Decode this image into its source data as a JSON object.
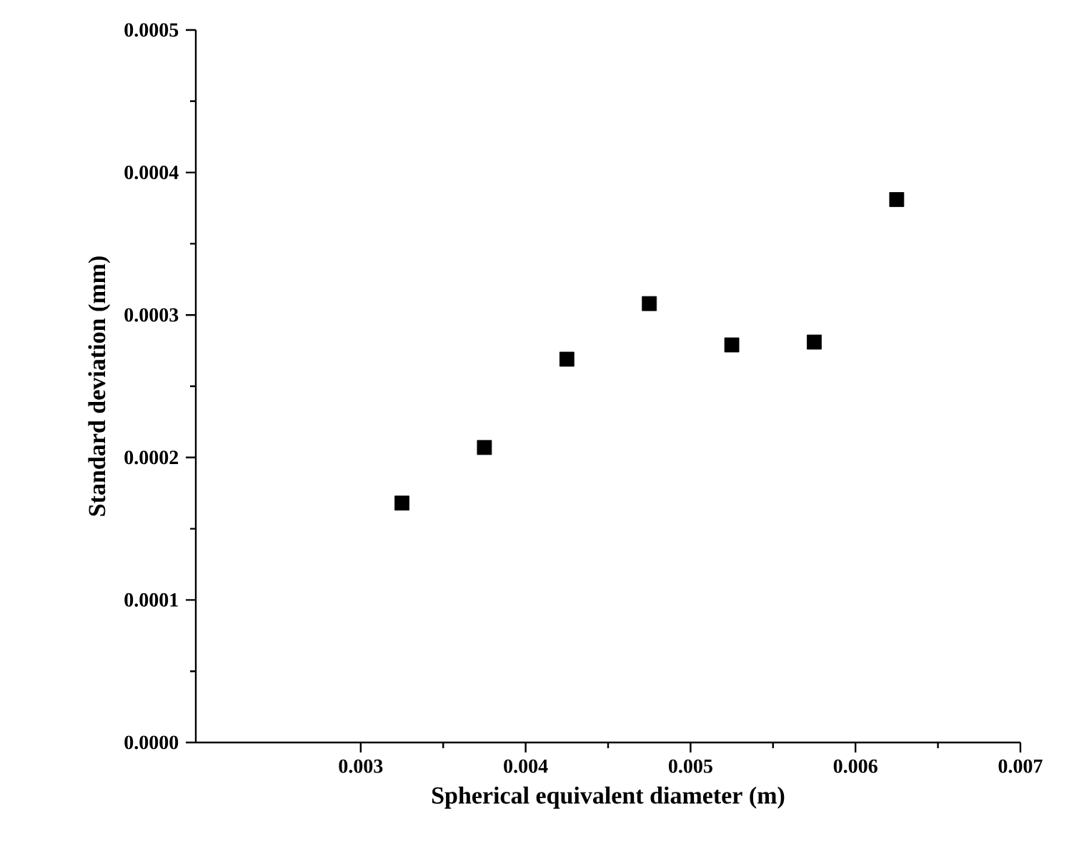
{
  "chart_data": {
    "type": "scatter",
    "xlabel": "Spherical equivalent diameter (m)",
    "ylabel": "Standard deviation (mm)",
    "x": [
      0.00325,
      0.00375,
      0.00425,
      0.00475,
      0.00525,
      0.00575,
      0.00625
    ],
    "values": [
      0.000168,
      0.000207,
      0.000269,
      0.000308,
      0.000279,
      0.000281,
      0.000381
    ],
    "color": "#000000",
    "marker": "square",
    "xlim": [
      0.002,
      0.007
    ],
    "xticks": [
      0.003,
      0.004,
      0.005,
      0.006,
      0.007
    ],
    "ylim": [
      0,
      0.0005
    ],
    "yticks": [
      "0.0000",
      0.0001,
      0.0002,
      0.0003,
      0.0004,
      0.0005
    ],
    "grid": false
  }
}
